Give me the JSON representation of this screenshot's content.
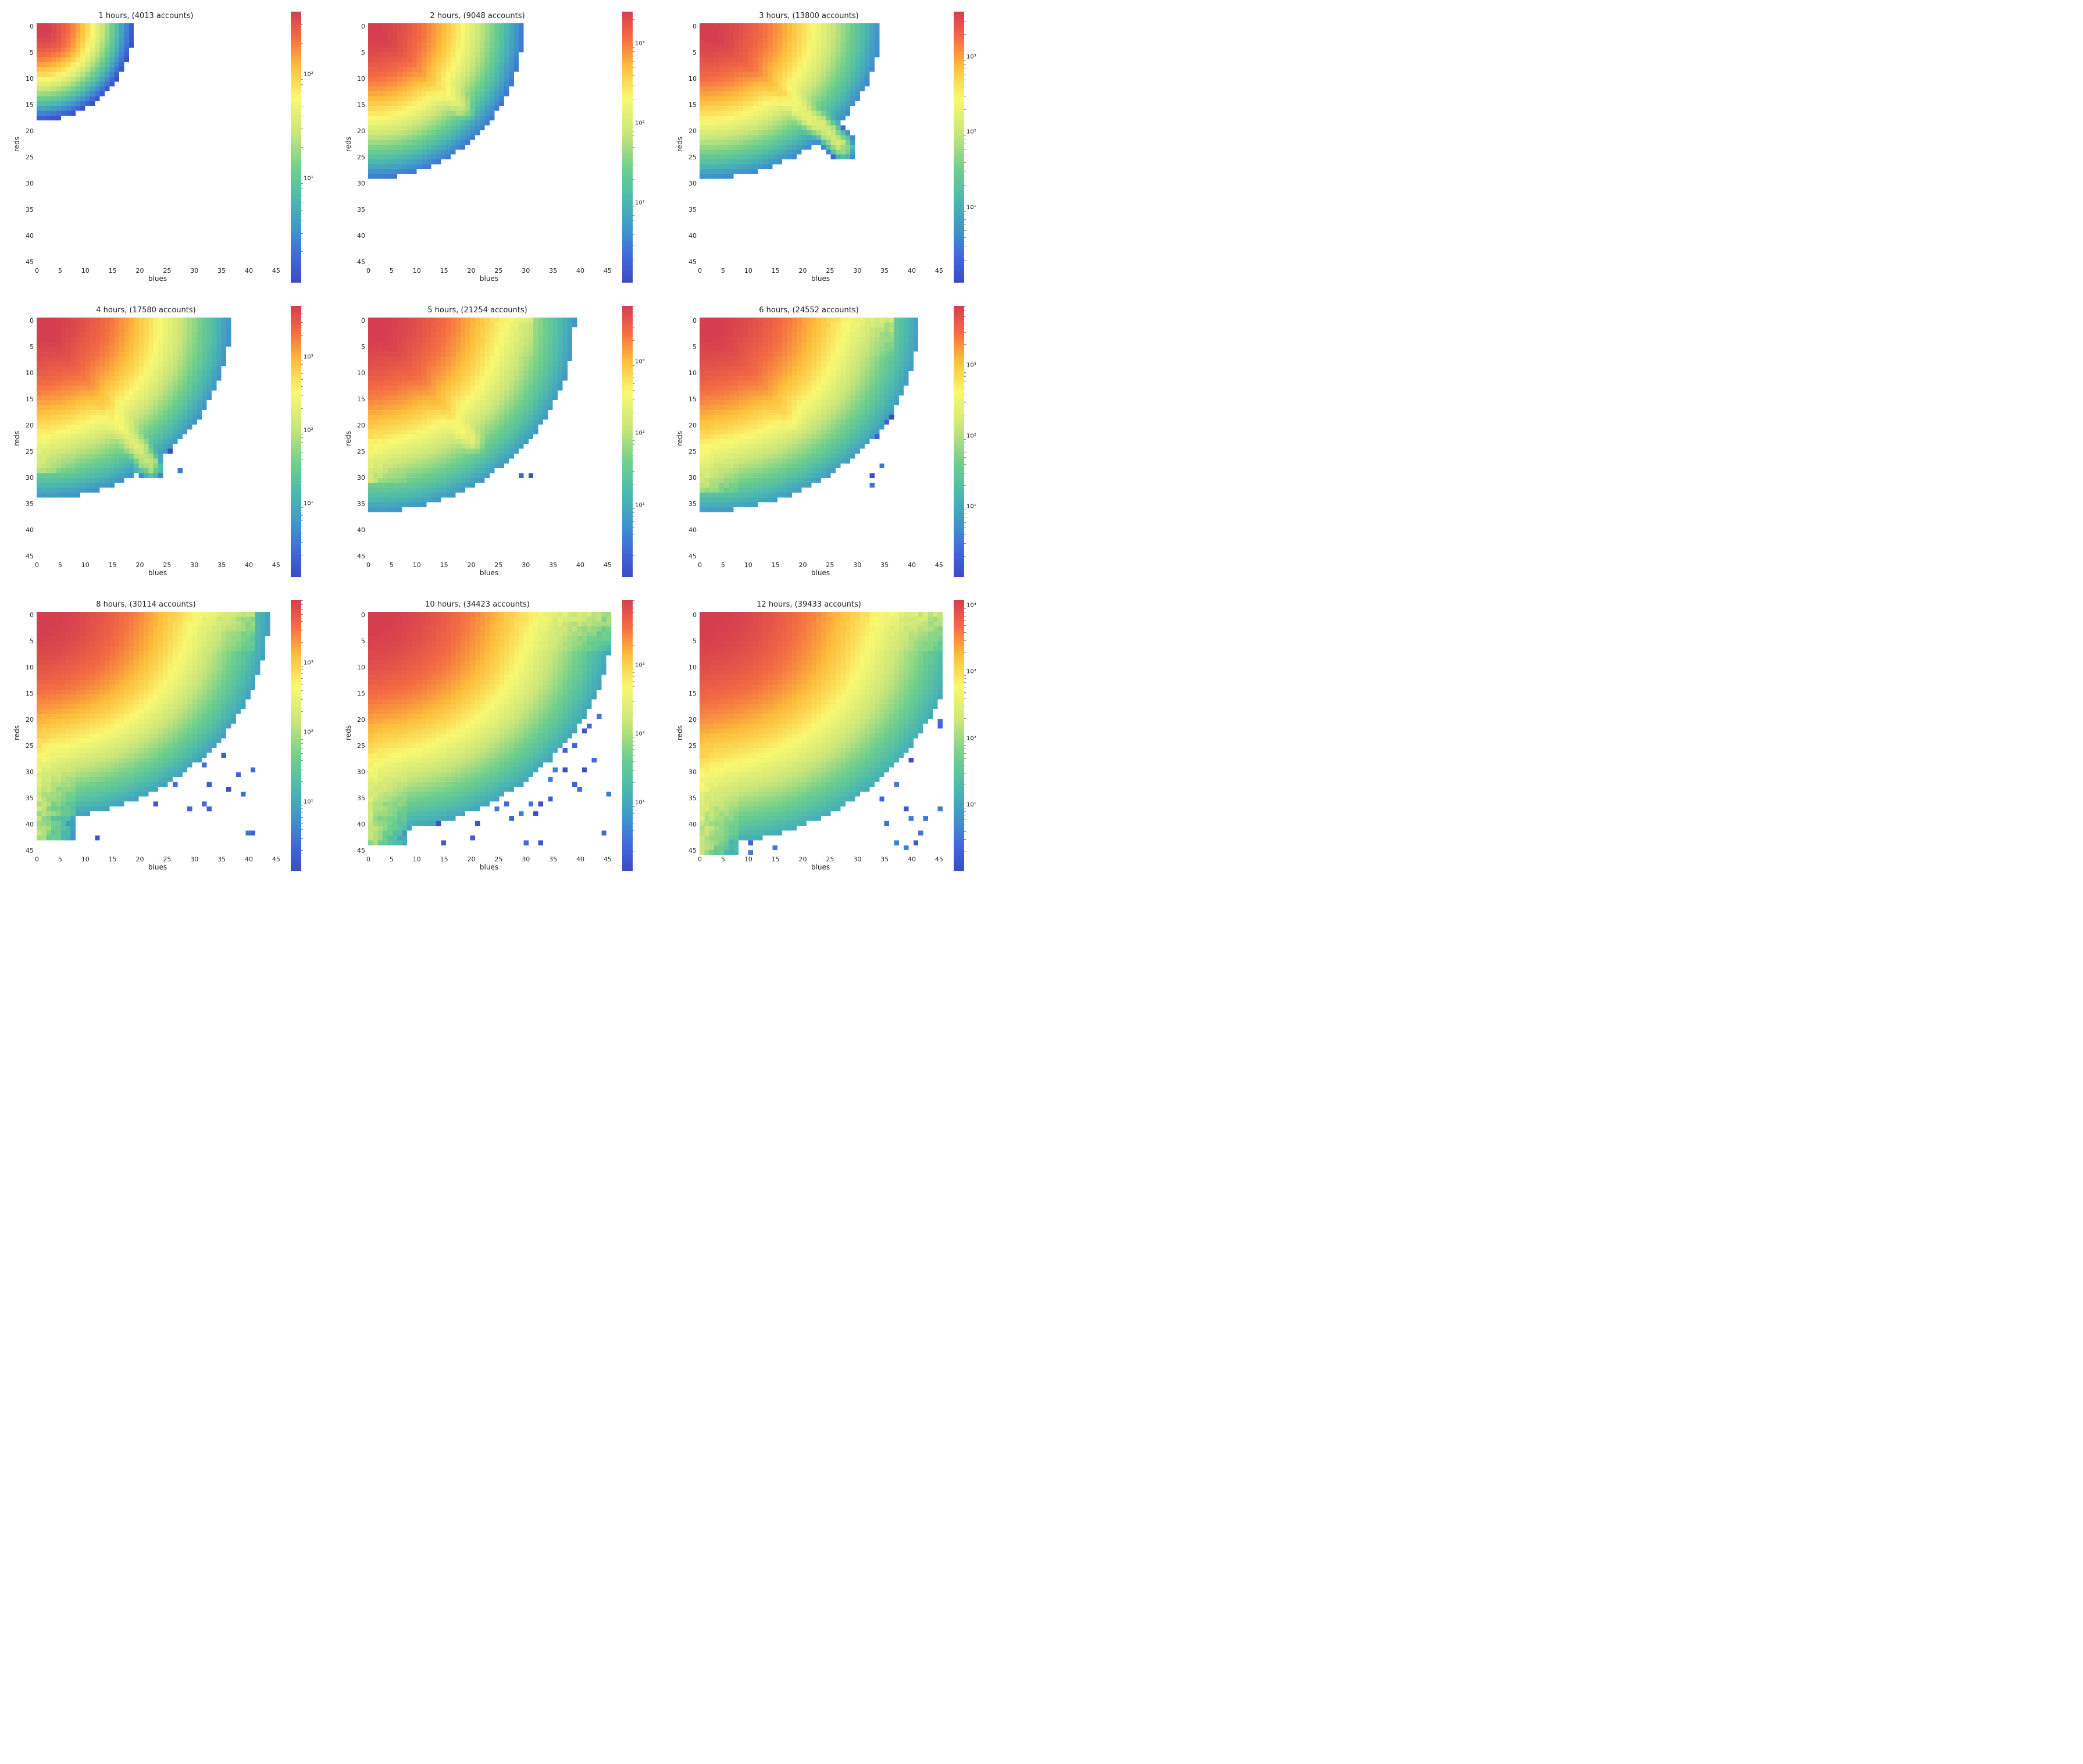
{
  "figure": {
    "type": "grid-of-heatmaps",
    "rows": 3,
    "cols": 3,
    "background_color": "#ffffff",
    "font_family": "DejaVu Sans",
    "colormap": {
      "name": "viridis-like-jet-spectral",
      "stops": [
        {
          "t": 0.0,
          "color": "#3b4cc0"
        },
        {
          "t": 0.08,
          "color": "#4063d8"
        },
        {
          "t": 0.18,
          "color": "#3f8fce"
        },
        {
          "t": 0.3,
          "color": "#4bb7b0"
        },
        {
          "t": 0.42,
          "color": "#6fcf8c"
        },
        {
          "t": 0.55,
          "color": "#c9e67a"
        },
        {
          "t": 0.68,
          "color": "#f9f871"
        },
        {
          "t": 0.8,
          "color": "#fdbd3c"
        },
        {
          "t": 0.9,
          "color": "#f46d43"
        },
        {
          "t": 1.0,
          "color": "#d53e4f"
        }
      ],
      "nan_color": "#ffffff",
      "scale": "log"
    },
    "axes_common": {
      "xlabel": "blues",
      "ylabel": "reds",
      "xlabel_fontsize": 12,
      "ylabel_fontsize": 12,
      "xlim": [
        0,
        50
      ],
      "ylim": [
        50,
        0
      ],
      "xtick_positions": [
        0,
        5,
        10,
        15,
        20,
        25,
        30,
        35,
        40,
        45
      ],
      "xtick_labels": [
        "0",
        "5",
        "10",
        "15",
        "20",
        "25",
        "30",
        "35",
        "40",
        "45"
      ],
      "ytick_positions": [
        0,
        5,
        10,
        15,
        20,
        25,
        30,
        35,
        40,
        45
      ],
      "ytick_labels": [
        "0",
        "5",
        "10",
        "15",
        "20",
        "25",
        "30",
        "35",
        "40",
        "45"
      ],
      "tick_fontsize": 11,
      "tick_color": "#333333",
      "nbins_x": 50,
      "nbins_y": 50
    },
    "panels": [
      {
        "title": "1 hours, (4013 accounts)",
        "hours": 1,
        "accounts": 4013,
        "color_scale": {
          "vmin": 1,
          "vmax": 400,
          "major_ticks": [
            10,
            100
          ],
          "tick_labels": [
            "10¹",
            "10²"
          ]
        },
        "cluster": {
          "core_peak": [
            0,
            0
          ],
          "spread_x": 8,
          "spread_y": 8,
          "tail_slope": 0.9,
          "tail_len": 8,
          "arm_x_len": 0,
          "arm_y_len": 0,
          "noise": 0.0
        }
      },
      {
        "title": "2 hours, (9048 accounts)",
        "hours": 2,
        "accounts": 9048,
        "color_scale": {
          "vmin": 1,
          "vmax": 2500,
          "major_ticks": [
            10,
            100,
            1000
          ],
          "tick_labels": [
            "10¹",
            "10²",
            "10³"
          ]
        },
        "cluster": {
          "core_peak": [
            0,
            0
          ],
          "spread_x": 12,
          "spread_y": 12,
          "tail_slope": 0.9,
          "tail_len": 20,
          "arm_x_len": 0,
          "arm_y_len": 0,
          "noise": 0.04
        }
      },
      {
        "title": "3 hours, (13800 accounts)",
        "hours": 3,
        "accounts": 13800,
        "color_scale": {
          "vmin": 1,
          "vmax": 4000,
          "major_ticks": [
            10,
            100,
            1000
          ],
          "tick_labels": [
            "10¹",
            "10²",
            "10³"
          ]
        },
        "cluster": {
          "core_peak": [
            0,
            0
          ],
          "spread_x": 14,
          "spread_y": 12,
          "tail_slope": 0.85,
          "tail_len": 30,
          "arm_x_len": 0,
          "arm_y_len": 0,
          "noise": 0.05
        }
      },
      {
        "title": "4 hours, (17580 accounts)",
        "hours": 4,
        "accounts": 17580,
        "color_scale": {
          "vmin": 1,
          "vmax": 5000,
          "major_ticks": [
            10,
            100,
            1000
          ],
          "tick_labels": [
            "10¹",
            "10²",
            "10³"
          ]
        },
        "cluster": {
          "core_peak": [
            0,
            0
          ],
          "spread_x": 15,
          "spread_y": 14,
          "tail_slope": 1.3,
          "tail_len": 24,
          "arm_x_len": 20,
          "arm_y_len": 32,
          "noise": 0.08
        }
      },
      {
        "title": "5 hours, (21254 accounts)",
        "hours": 5,
        "accounts": 21254,
        "color_scale": {
          "vmin": 1,
          "vmax": 6000,
          "major_ticks": [
            10,
            100,
            1000
          ],
          "tick_labels": [
            "10¹",
            "10²",
            "10³"
          ]
        },
        "cluster": {
          "core_peak": [
            0,
            0
          ],
          "spread_x": 16,
          "spread_y": 15,
          "tail_slope": 1.2,
          "tail_len": 22,
          "arm_x_len": 34,
          "arm_y_len": 34,
          "noise": 0.09
        }
      },
      {
        "title": "6 hours, (24552 accounts)",
        "hours": 6,
        "accounts": 24552,
        "color_scale": {
          "vmin": 1,
          "vmax": 7000,
          "major_ticks": [
            10,
            100,
            1000
          ],
          "tick_labels": [
            "10¹",
            "10²",
            "10³"
          ]
        },
        "cluster": {
          "core_peak": [
            0,
            0
          ],
          "spread_x": 17,
          "spread_y": 15,
          "tail_slope": 1.1,
          "tail_len": 20,
          "arm_x_len": 40,
          "arm_y_len": 36,
          "noise": 0.1
        }
      },
      {
        "title": "8 hours, (30114 accounts)",
        "hours": 8,
        "accounts": 30114,
        "color_scale": {
          "vmin": 1,
          "vmax": 8000,
          "major_ticks": [
            10,
            100,
            1000
          ],
          "tick_labels": [
            "10¹",
            "10²",
            "10³"
          ]
        },
        "cluster": {
          "core_peak": [
            0,
            0
          ],
          "spread_x": 18,
          "spread_y": 16,
          "tail_slope": 0,
          "tail_len": 0,
          "arm_x_len": 45,
          "arm_y_len": 47,
          "noise": 0.11
        }
      },
      {
        "title": "10 hours, (34423 accounts)",
        "hours": 10,
        "accounts": 34423,
        "color_scale": {
          "vmin": 1,
          "vmax": 9000,
          "major_ticks": [
            10,
            100,
            1000
          ],
          "tick_labels": [
            "10¹",
            "10²",
            "10³"
          ]
        },
        "cluster": {
          "core_peak": [
            0,
            0
          ],
          "spread_x": 19,
          "spread_y": 17,
          "tail_slope": 0,
          "tail_len": 0,
          "arm_x_len": 50,
          "arm_y_len": 48,
          "noise": 0.12
        }
      },
      {
        "title": "12 hours, (39433 accounts)",
        "hours": 12,
        "accounts": 39433,
        "color_scale": {
          "vmin": 1,
          "vmax": 12000,
          "major_ticks": [
            10,
            100,
            1000,
            10000
          ],
          "tick_labels": [
            "10¹",
            "10²",
            "10³",
            "10⁴"
          ]
        },
        "cluster": {
          "core_peak": [
            0,
            0
          ],
          "spread_x": 20,
          "spread_y": 18,
          "tail_slope": 0,
          "tail_len": 0,
          "arm_x_len": 50,
          "arm_y_len": 50,
          "noise": 0.14
        }
      }
    ]
  }
}
